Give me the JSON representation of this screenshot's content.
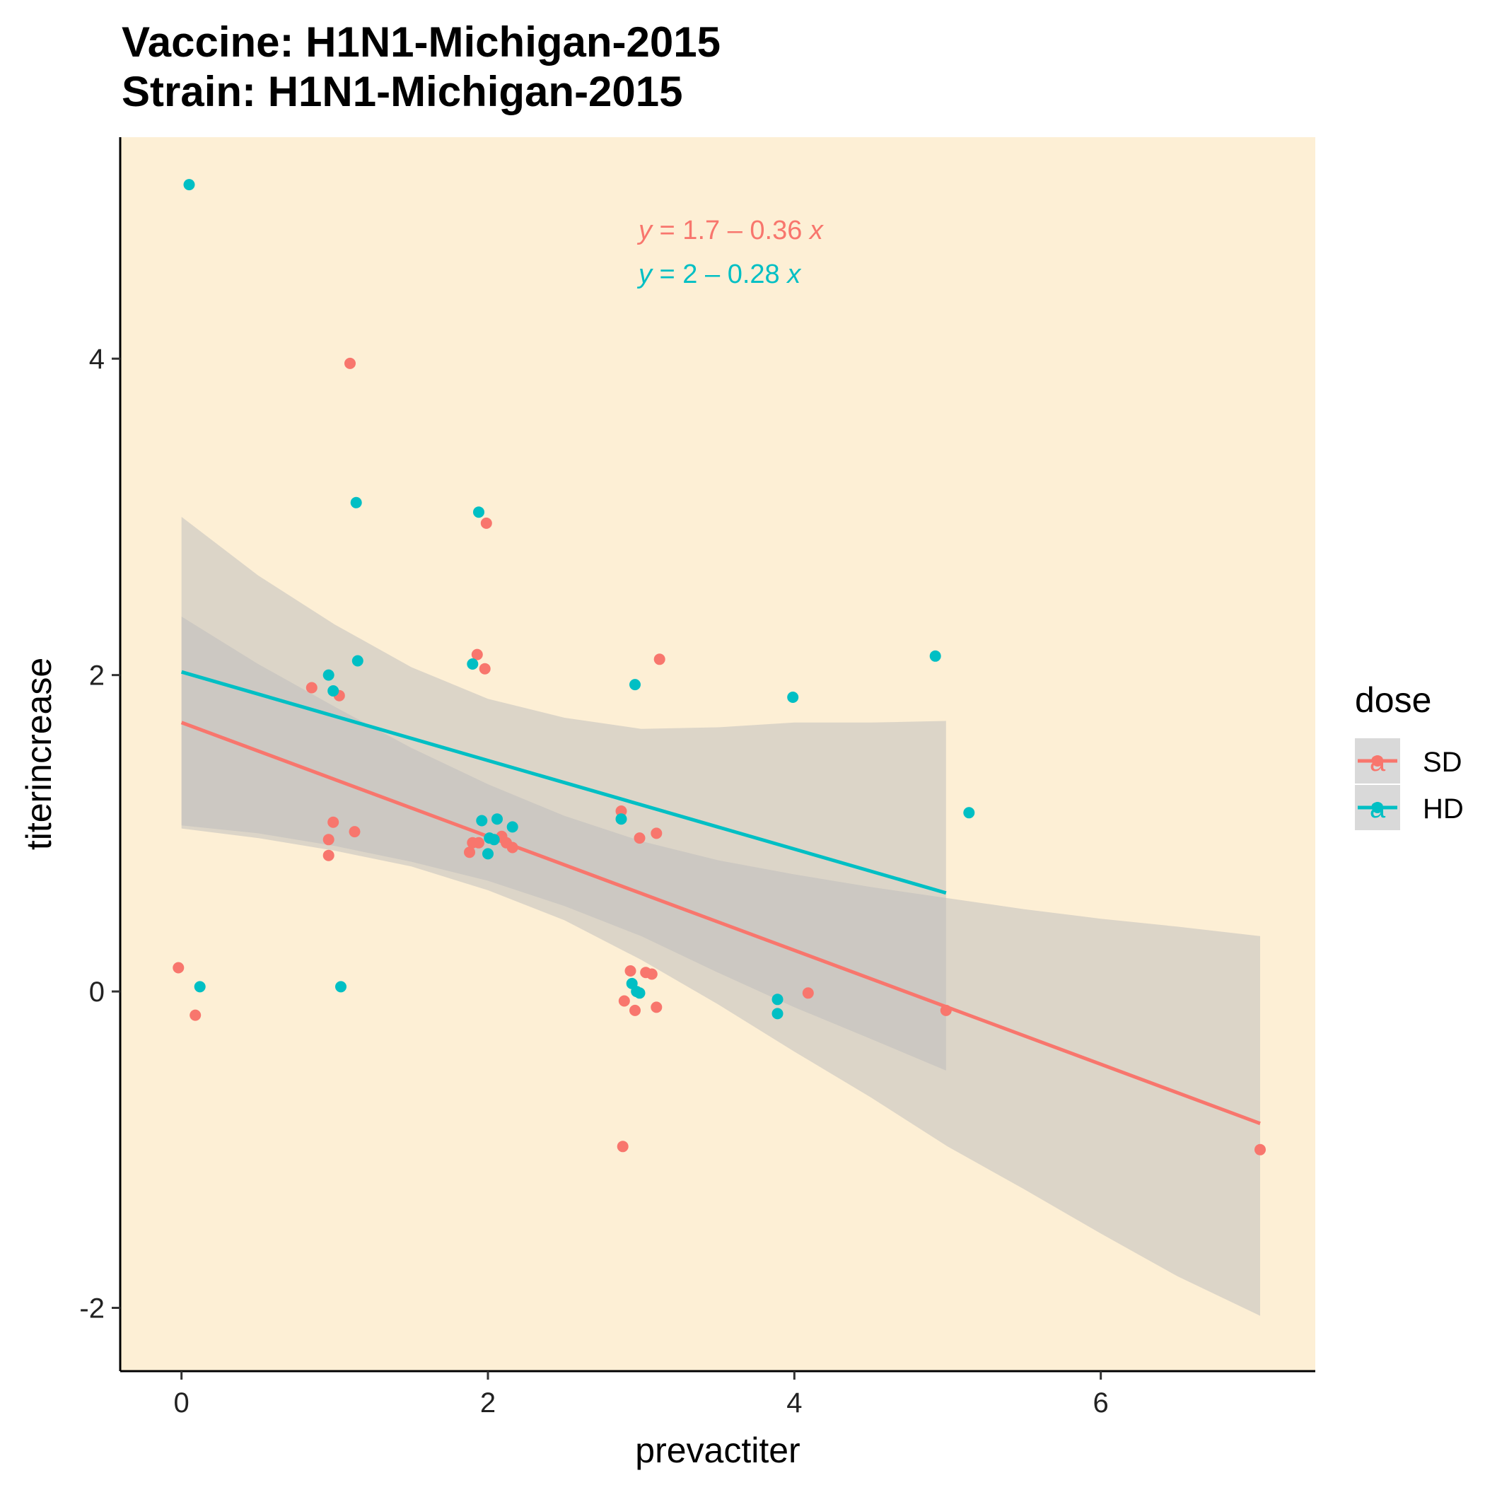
{
  "chart_data": {
    "type": "scatter",
    "title": [
      "Vaccine: H1N1-Michigan-2015",
      "Strain: H1N1-Michigan-2015"
    ],
    "xlabel": "prevactiter",
    "ylabel": "titerincrease",
    "xlim": [
      -0.4,
      7.4
    ],
    "ylim": [
      -2.4,
      5.4
    ],
    "x_ticks": [
      0,
      2,
      4,
      6
    ],
    "y_ticks": [
      -2,
      0,
      2,
      4
    ],
    "x_tick_labels": [
      "0",
      "2",
      "4",
      "6"
    ],
    "y_tick_labels": [
      "-2",
      "0",
      "2",
      "4"
    ],
    "background_color": "#FDEFD5",
    "band_color": "#BCBCBC",
    "grid": false,
    "legend": {
      "title": "dose",
      "placement": "right",
      "key_background": "#D9D9D9",
      "key_glyph": "a",
      "entries": [
        "SD",
        "HD"
      ]
    },
    "equations": [
      {
        "series": "SD",
        "parts": [
          "y",
          " = 1.7 – 0.36 ",
          "x"
        ]
      },
      {
        "series": "HD",
        "parts": [
          "y",
          " = 2 – 0.28 ",
          "x"
        ]
      }
    ],
    "series": [
      {
        "name": "SD",
        "color": "#F8766D",
        "points": [
          [
            -0.02,
            0.15
          ],
          [
            0.09,
            -0.15
          ],
          [
            0.85,
            1.92
          ],
          [
            0.96,
            0.96
          ],
          [
            0.96,
            0.86
          ],
          [
            0.99,
            1.07
          ],
          [
            1.03,
            1.87
          ],
          [
            1.13,
            1.01
          ],
          [
            1.1,
            3.97
          ],
          [
            1.88,
            0.88
          ],
          [
            1.9,
            0.94
          ],
          [
            1.94,
            0.94
          ],
          [
            1.93,
            2.13
          ],
          [
            1.98,
            2.04
          ],
          [
            1.99,
            2.96
          ],
          [
            2.09,
            0.98
          ],
          [
            2.12,
            0.94
          ],
          [
            2.16,
            0.91
          ],
          [
            2.87,
            1.14
          ],
          [
            2.89,
            -0.06
          ],
          [
            2.88,
            -0.98
          ],
          [
            2.93,
            0.13
          ],
          [
            2.96,
            -0.12
          ],
          [
            2.99,
            0.97
          ],
          [
            3.03,
            0.12
          ],
          [
            3.07,
            0.11
          ],
          [
            3.1,
            1.0
          ],
          [
            3.1,
            -0.1
          ],
          [
            3.12,
            2.1
          ],
          [
            4.09,
            -0.01
          ],
          [
            4.99,
            -0.12
          ],
          [
            7.04,
            -1.0
          ]
        ],
        "fit": {
          "intercept": 1.7,
          "slope": -0.36,
          "x_range": [
            0,
            7.04
          ]
        },
        "ci_band": [
          [
            0.0,
            1.03,
            2.37
          ],
          [
            0.5,
            0.97,
            2.07
          ],
          [
            1.0,
            0.89,
            1.8
          ],
          [
            1.5,
            0.79,
            1.54
          ],
          [
            2.0,
            0.64,
            1.31
          ],
          [
            2.5,
            0.45,
            1.11
          ],
          [
            3.0,
            0.2,
            0.95
          ],
          [
            3.5,
            -0.08,
            0.83
          ],
          [
            4.0,
            -0.38,
            0.74
          ],
          [
            4.5,
            -0.67,
            0.66
          ],
          [
            5.0,
            -0.98,
            0.59
          ],
          [
            5.5,
            -1.25,
            0.52
          ],
          [
            6.0,
            -1.53,
            0.46
          ],
          [
            6.5,
            -1.8,
            0.41
          ],
          [
            7.04,
            -2.05,
            0.35
          ]
        ]
      },
      {
        "name": "HD",
        "color": "#00BFC4",
        "points": [
          [
            0.05,
            5.1
          ],
          [
            0.12,
            0.03
          ],
          [
            0.96,
            2.0
          ],
          [
            0.99,
            1.9
          ],
          [
            1.04,
            0.03
          ],
          [
            1.14,
            3.09
          ],
          [
            1.15,
            2.09
          ],
          [
            1.9,
            2.07
          ],
          [
            1.94,
            3.03
          ],
          [
            1.96,
            1.08
          ],
          [
            2.0,
            0.87
          ],
          [
            2.01,
            0.97
          ],
          [
            2.04,
            0.96
          ],
          [
            2.06,
            1.09
          ],
          [
            2.16,
            1.04
          ],
          [
            2.87,
            1.09
          ],
          [
            2.94,
            0.05
          ],
          [
            2.96,
            1.94
          ],
          [
            2.97,
            0.0
          ],
          [
            2.99,
            -0.01
          ],
          [
            3.89,
            -0.05
          ],
          [
            3.89,
            -0.14
          ],
          [
            3.99,
            1.86
          ],
          [
            4.92,
            2.12
          ],
          [
            5.14,
            1.13
          ]
        ],
        "fit": {
          "intercept": 2.02,
          "slope": -0.28,
          "x_range": [
            0,
            4.99
          ]
        },
        "ci_band": [
          [
            0.0,
            1.05,
            3.0
          ],
          [
            0.5,
            1.0,
            2.63
          ],
          [
            1.0,
            0.92,
            2.32
          ],
          [
            1.5,
            0.82,
            2.05
          ],
          [
            2.0,
            0.7,
            1.85
          ],
          [
            2.5,
            0.54,
            1.73
          ],
          [
            3.0,
            0.35,
            1.66
          ],
          [
            3.5,
            0.12,
            1.67
          ],
          [
            4.0,
            -0.1,
            1.7
          ],
          [
            4.5,
            -0.3,
            1.7
          ],
          [
            4.99,
            -0.5,
            1.71
          ]
        ]
      }
    ]
  }
}
